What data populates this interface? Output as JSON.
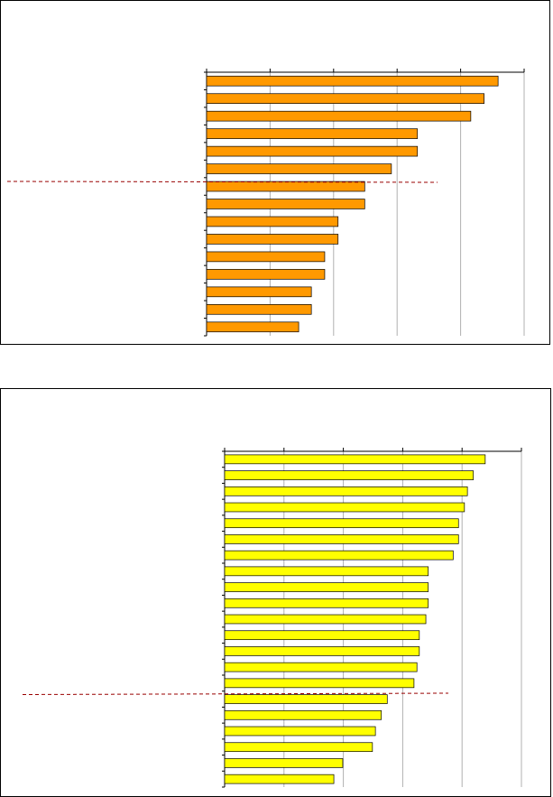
{
  "chart_data": [
    {
      "type": "bar",
      "orientation": "horizontal",
      "color": "#ff9900",
      "grid": true,
      "values": [
        4.59,
        4.37,
        4.16,
        3.32,
        3.32,
        2.91,
        2.49,
        2.49,
        2.07,
        2.07,
        1.86,
        1.86,
        1.65,
        1.65,
        1.45
      ],
      "xlim": [
        0,
        5
      ],
      "xticks": [
        0,
        1,
        2,
        3,
        4,
        5
      ]
    },
    {
      "type": "bar",
      "orientation": "horizontal",
      "color": "#ffff00",
      "grid": true,
      "values": [
        4.39,
        4.19,
        4.09,
        4.04,
        3.94,
        3.94,
        3.85,
        3.43,
        3.43,
        3.43,
        3.39,
        3.28,
        3.28,
        3.24,
        3.19,
        2.74,
        2.64,
        2.54,
        2.49,
        1.99,
        1.84
      ],
      "xlim": [
        0,
        5
      ],
      "xticks": [
        0,
        1,
        2,
        3,
        4,
        5
      ]
    }
  ]
}
